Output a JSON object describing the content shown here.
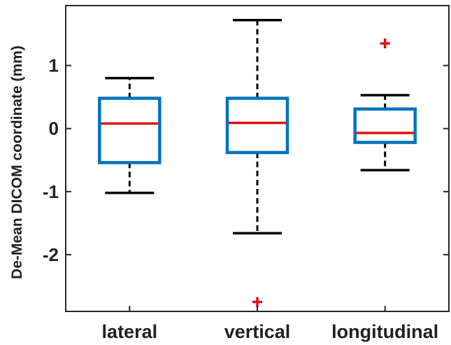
{
  "chart_data": {
    "type": "boxplot",
    "title": "",
    "xlabel": "",
    "ylabel": "De-Mean DICOM coordinate (mm)",
    "categories": [
      "lateral",
      "vertical",
      "longitudinal"
    ],
    "ylim": [
      -2.9,
      1.95
    ],
    "yticks": [
      -2,
      -1,
      0,
      1
    ],
    "ytick_labels": [
      "-2",
      "-1",
      "0",
      "1"
    ],
    "grid": false,
    "boxes": [
      {
        "category": "lateral",
        "whisker_low": -1.02,
        "q1": -0.54,
        "median": 0.08,
        "q3": 0.48,
        "whisker_high": 0.8,
        "outliers": []
      },
      {
        "category": "vertical",
        "whisker_low": -1.66,
        "q1": -0.38,
        "median": 0.09,
        "q3": 0.48,
        "whisker_high": 1.72,
        "outliers": [
          -2.75
        ]
      },
      {
        "category": "longitudinal",
        "whisker_low": -0.66,
        "q1": -0.22,
        "median": -0.07,
        "q3": 0.31,
        "whisker_high": 0.53,
        "outliers": [
          1.35
        ]
      }
    ],
    "colors": {
      "box": "#0072BD",
      "median": "#E01010",
      "whisker": "#000000",
      "outlier": "#E01010",
      "axis": "#262626"
    }
  }
}
